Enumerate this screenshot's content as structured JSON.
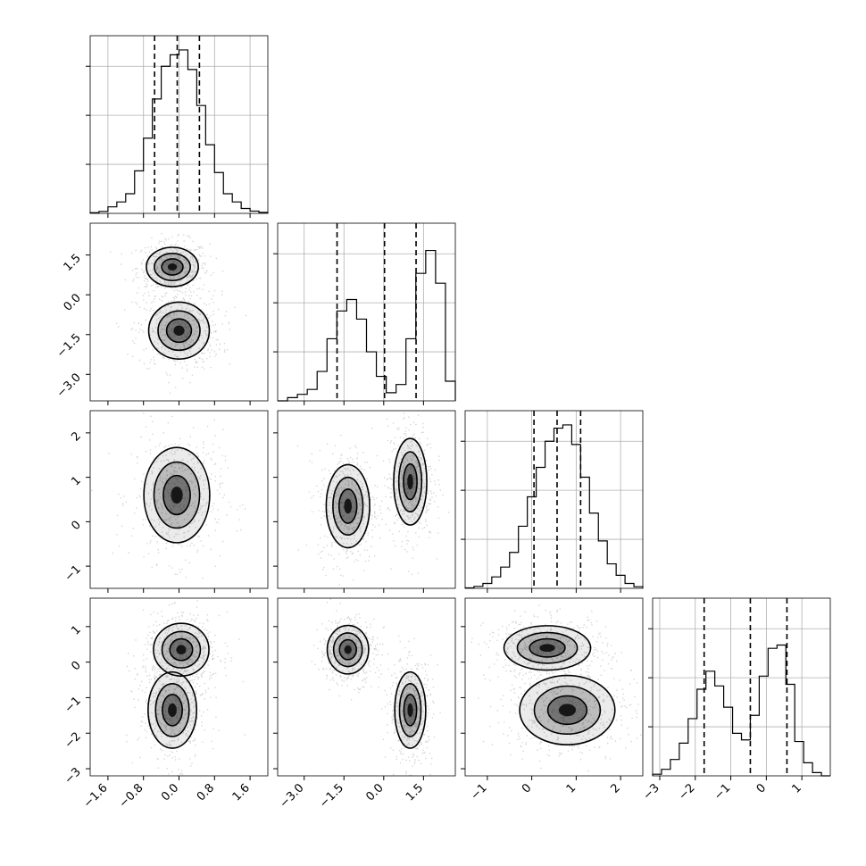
{
  "chart_data": {
    "type": "corner",
    "grid": true,
    "colors": {
      "line": "#000000",
      "grid": "#b0b0b0",
      "density": "#000000"
    },
    "params": [
      {
        "xlim": [
          -2.0,
          2.0
        ],
        "ticks": [
          -1.6,
          -0.8,
          0.0,
          0.8,
          1.6
        ],
        "tick_labels": [
          "−1.6",
          "−0.8",
          "0.0",
          "0.8",
          "1.6"
        ],
        "quantiles": [
          -0.55,
          -0.04,
          0.46
        ],
        "hist": [
          0.004,
          0.012,
          0.04,
          0.07,
          0.12,
          0.26,
          0.46,
          0.7,
          0.9,
          0.97,
          1.0,
          0.88,
          0.66,
          0.42,
          0.25,
          0.12,
          0.07,
          0.03,
          0.014,
          0.006
        ],
        "hist_max": 1.0
      },
      {
        "xlim": [
          -4.0,
          2.7
        ],
        "ticks": [
          -3.0,
          -1.5,
          0.0,
          1.5
        ],
        "tick_labels": [
          "−3.0",
          "−1.5",
          "0.0",
          "1.5"
        ],
        "quantiles": [
          -1.76,
          0.03,
          1.22
        ],
        "hist": [
          0.0,
          0.02,
          0.04,
          0.07,
          0.18,
          0.38,
          0.55,
          0.62,
          0.5,
          0.3,
          0.15,
          0.05,
          0.1,
          0.38,
          0.78,
          0.92,
          0.72,
          0.12
        ],
        "hist_max": 1.0
      },
      {
        "xlim": [
          -1.5,
          2.5
        ],
        "ticks": [
          -1,
          0,
          1,
          2
        ],
        "tick_labels": [
          "−1",
          "0",
          "1",
          "2"
        ],
        "quantiles": [
          0.05,
          0.57,
          1.1
        ],
        "hist": [
          0.003,
          0.012,
          0.03,
          0.07,
          0.13,
          0.22,
          0.38,
          0.56,
          0.74,
          0.9,
          0.98,
          1.0,
          0.88,
          0.68,
          0.46,
          0.29,
          0.15,
          0.08,
          0.03,
          0.01
        ],
        "hist_max": 1.0
      },
      {
        "xlim": [
          -3.2,
          1.8
        ],
        "ticks": [
          -3,
          -2,
          -1,
          0,
          1
        ],
        "tick_labels": [
          "−3",
          "−2",
          "−1",
          "0",
          "1"
        ],
        "quantiles": [
          -1.75,
          -0.45,
          0.58
        ],
        "hist": [
          0.01,
          0.04,
          0.1,
          0.2,
          0.35,
          0.53,
          0.64,
          0.55,
          0.42,
          0.26,
          0.22,
          0.37,
          0.61,
          0.78,
          0.8,
          0.56,
          0.21,
          0.08,
          0.02,
          0.0
        ],
        "hist_max": 1.0
      }
    ],
    "pairs": [
      {
        "row": 1,
        "col": 0,
        "blobs": [
          {
            "cx": -0.15,
            "cy": 1.05,
            "sx": 0.3,
            "sy": 0.38
          },
          {
            "cx": 0.0,
            "cy": -1.35,
            "sx": 0.35,
            "sy": 0.55
          }
        ]
      },
      {
        "row": 2,
        "col": 0,
        "blobs": [
          {
            "cx": -0.05,
            "cy": 0.6,
            "sx": 0.38,
            "sy": 0.55
          }
        ]
      },
      {
        "row": 2,
        "col": 1,
        "blobs": [
          {
            "cx": -1.35,
            "cy": 0.35,
            "sx": 0.42,
            "sy": 0.48
          },
          {
            "cx": 1.0,
            "cy": 0.9,
            "sx": 0.32,
            "sy": 0.5
          }
        ]
      },
      {
        "row": 3,
        "col": 0,
        "blobs": [
          {
            "cx": 0.05,
            "cy": 0.35,
            "sx": 0.32,
            "sy": 0.38
          },
          {
            "cx": -0.15,
            "cy": -1.35,
            "sx": 0.28,
            "sy": 0.55
          }
        ]
      },
      {
        "row": 3,
        "col": 1,
        "blobs": [
          {
            "cx": -1.35,
            "cy": 0.35,
            "sx": 0.4,
            "sy": 0.35
          },
          {
            "cx": 1.0,
            "cy": -1.35,
            "sx": 0.3,
            "sy": 0.55
          }
        ]
      },
      {
        "row": 3,
        "col": 2,
        "blobs": [
          {
            "cx": 0.35,
            "cy": 0.4,
            "sx": 0.5,
            "sy": 0.32
          },
          {
            "cx": 0.8,
            "cy": -1.35,
            "sx": 0.55,
            "sy": 0.5
          }
        ]
      }
    ],
    "contour_levels": [
      0.15,
      0.5,
      0.85
    ]
  }
}
